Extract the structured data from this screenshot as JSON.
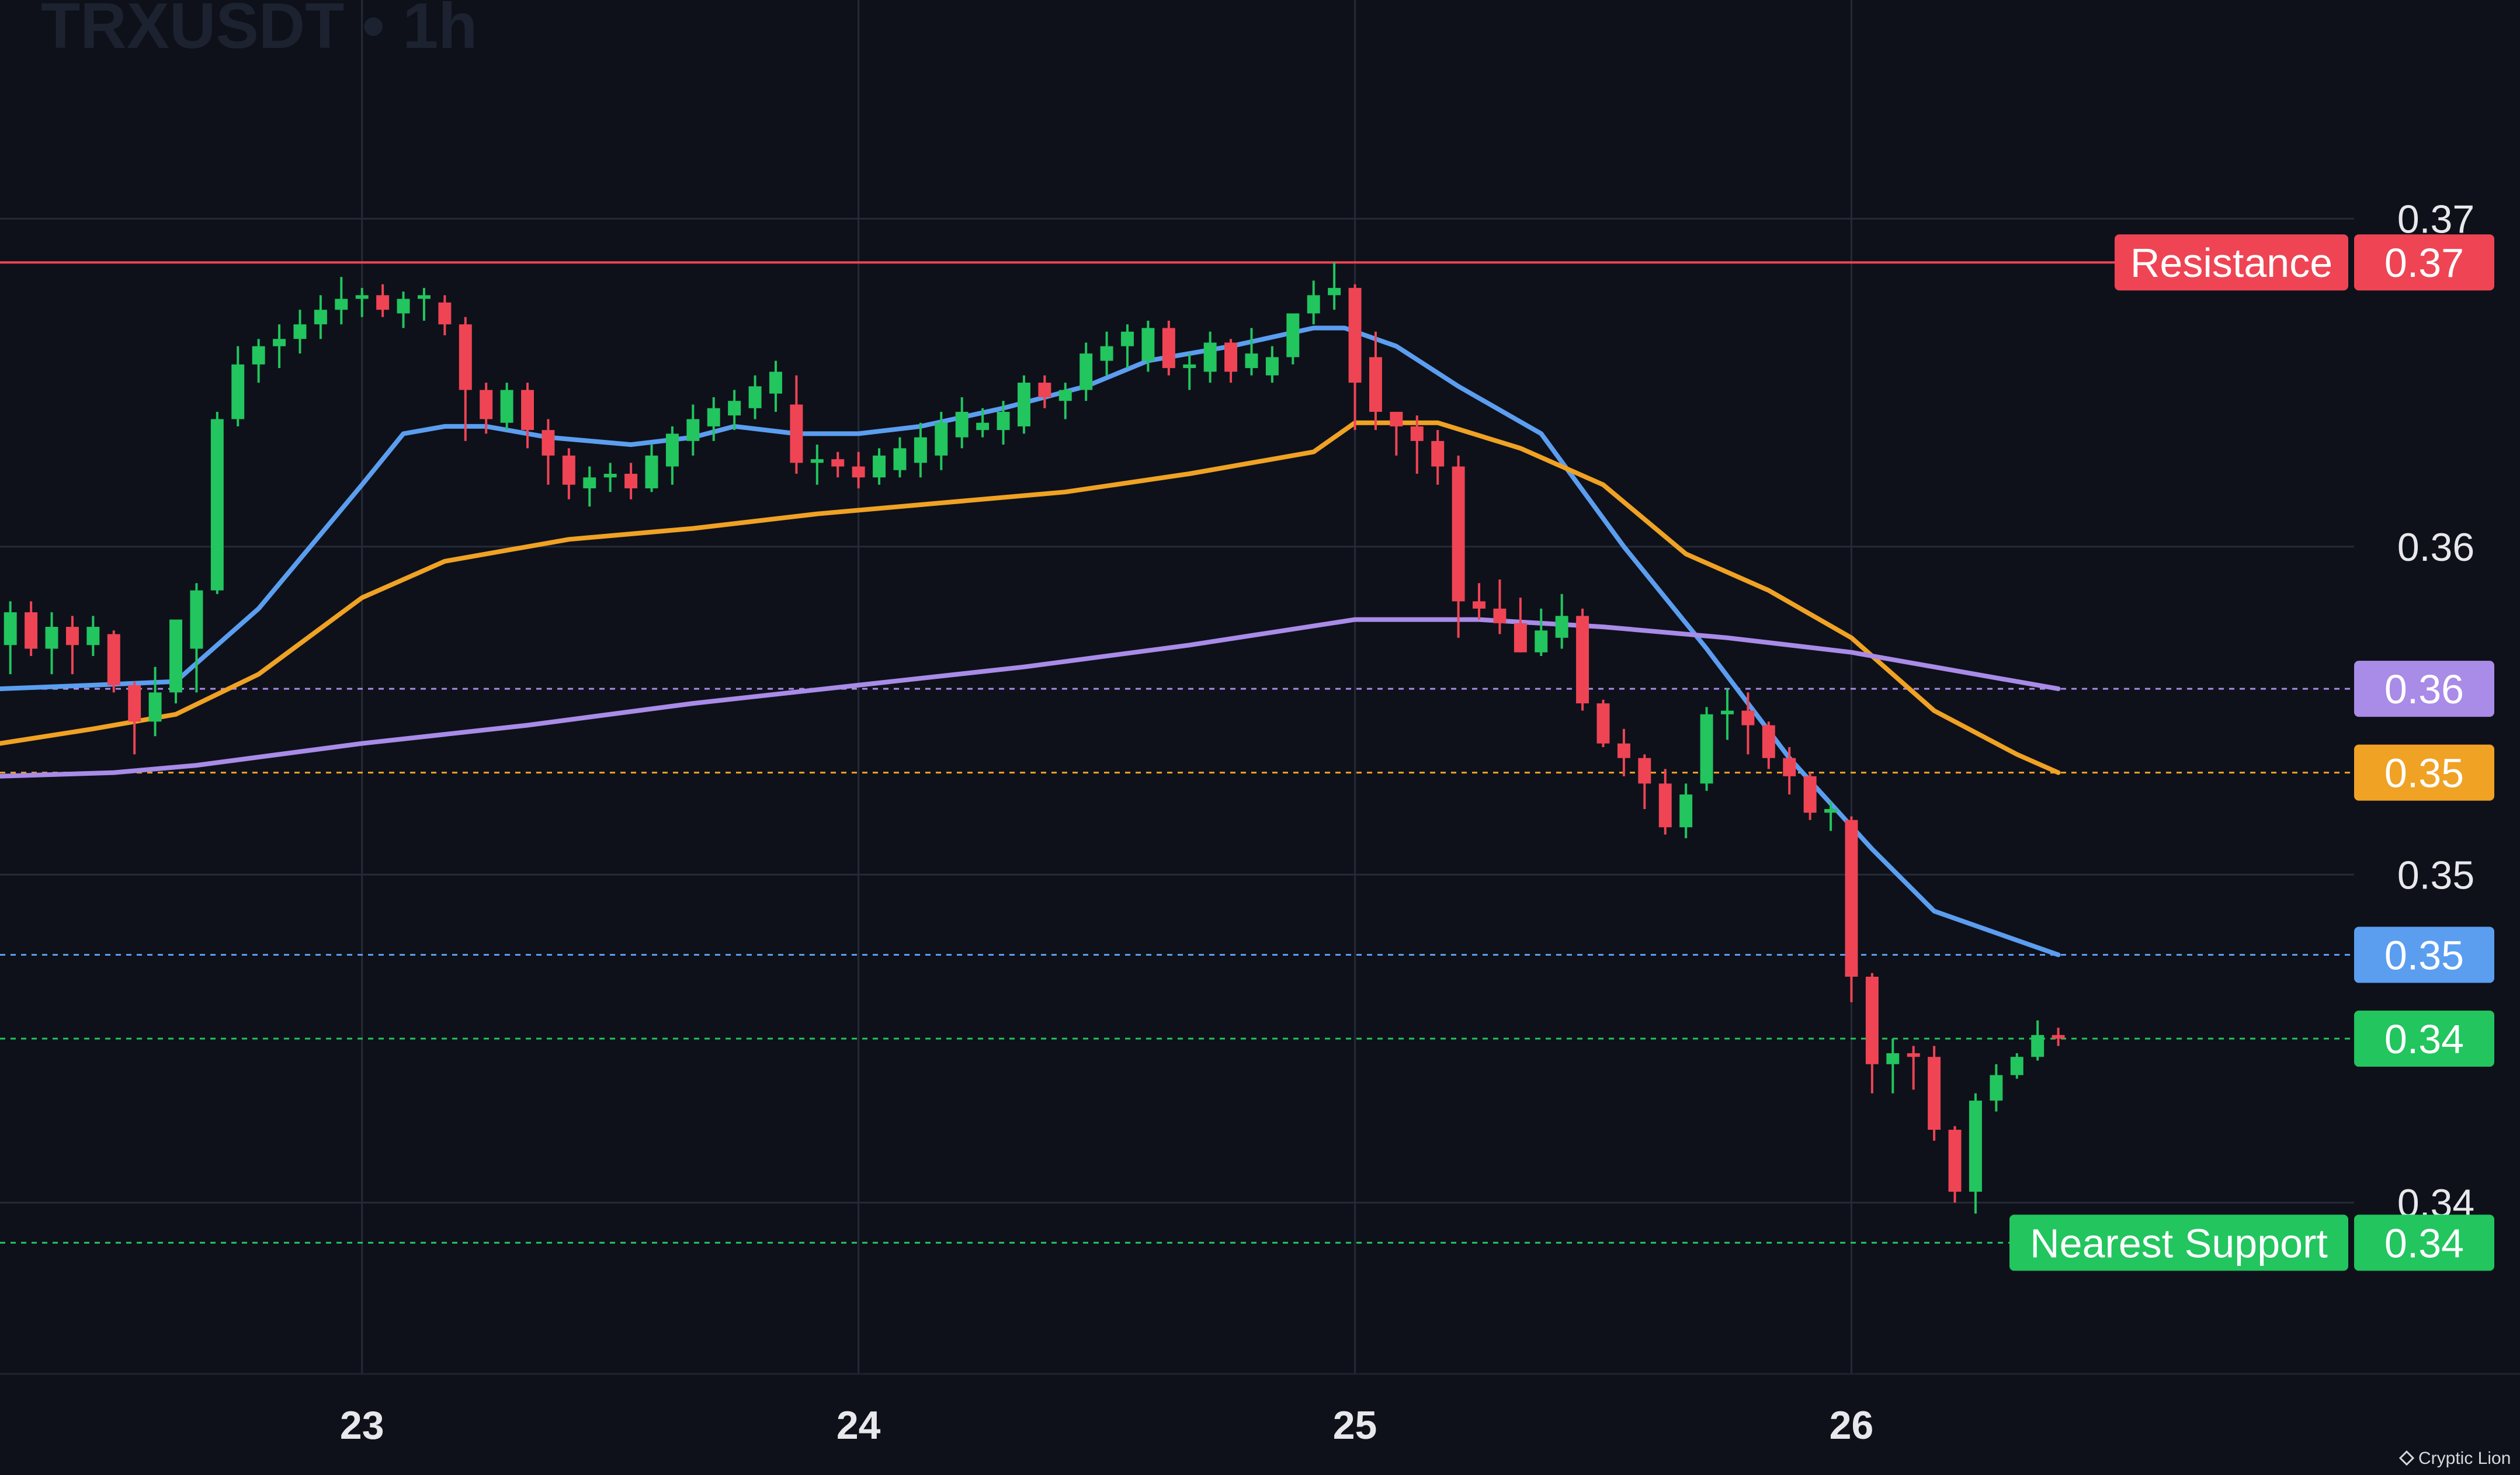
{
  "symbol_title": "TRXUSDT • 1h",
  "watermark": "Cryptic Lion",
  "colors": {
    "background": "#0e111a",
    "grid": "#252a36",
    "up": "#22c55e",
    "down": "#ef4454",
    "ema_fast": "#5b9ef0",
    "ema_mid": "#f0a224",
    "ema_slow": "#a98be8",
    "resistance": "#ef4454",
    "support": "#22c55e",
    "axis_text": "#e8e8ec"
  },
  "chart_data": {
    "type": "candlestick",
    "title": "TRXUSDT • 1h",
    "x_ticks": [
      "23",
      "24",
      "25",
      "26"
    ],
    "x_tick_positions": [
      0,
      24,
      48,
      72
    ],
    "x_range": [
      -17.5,
      96.3
    ],
    "y_ticks": [
      "0.37",
      "0.36",
      "0.35",
      "0.34"
    ],
    "y_tick_values": [
      0.3685,
      0.3595,
      0.3505,
      0.3415
    ],
    "ylim": [
      0.3368,
      0.3745
    ],
    "resistance": {
      "label": "Resistance",
      "price_label": "0.37",
      "value": 0.3673
    },
    "nearest_support": {
      "label": "Nearest Support",
      "price_label": "0.34",
      "value": 0.3404
    },
    "price_labels": [
      {
        "series": "ema_slow",
        "label": "0.36",
        "value": 0.3556
      },
      {
        "series": "ema_mid",
        "label": "0.35",
        "value": 0.3533
      },
      {
        "series": "ema_fast",
        "label": "0.35",
        "value": 0.3483
      },
      {
        "series": "last_price",
        "label": "0.34",
        "value": 0.346
      }
    ],
    "candles": [
      [
        -17.0,
        0.3568,
        0.358,
        0.356,
        0.3577
      ],
      [
        -16.0,
        0.3577,
        0.358,
        0.3565,
        0.3567
      ],
      [
        -15.0,
        0.3567,
        0.3577,
        0.356,
        0.3573
      ],
      [
        -14.0,
        0.3573,
        0.3576,
        0.356,
        0.3568
      ],
      [
        -13.0,
        0.3568,
        0.3576,
        0.3565,
        0.3573
      ],
      [
        -12.0,
        0.3571,
        0.3572,
        0.3555,
        0.3557
      ],
      [
        -11.0,
        0.3557,
        0.3558,
        0.3538,
        0.3547
      ],
      [
        -10.0,
        0.3547,
        0.3562,
        0.3543,
        0.3555
      ],
      [
        -9.0,
        0.3555,
        0.3573,
        0.3552,
        0.3575
      ],
      [
        -8.0,
        0.3567,
        0.3585,
        0.3555,
        0.3583
      ],
      [
        -7.0,
        0.3583,
        0.3632,
        0.3582,
        0.363
      ],
      [
        -6.0,
        0.363,
        0.365,
        0.3628,
        0.3645
      ],
      [
        -5.0,
        0.3645,
        0.3652,
        0.364,
        0.365
      ],
      [
        -4.0,
        0.365,
        0.3656,
        0.3644,
        0.3652
      ],
      [
        -3.0,
        0.3652,
        0.366,
        0.3648,
        0.3656
      ],
      [
        -2.0,
        0.3656,
        0.3664,
        0.3652,
        0.366
      ],
      [
        -1.0,
        0.366,
        0.3669,
        0.3656,
        0.3663
      ],
      [
        0.0,
        0.3663,
        0.3666,
        0.3658,
        0.3664
      ],
      [
        1.0,
        0.3664,
        0.3667,
        0.3658,
        0.366
      ],
      [
        2.0,
        0.3659,
        0.3665,
        0.3655,
        0.3663
      ],
      [
        3.0,
        0.3663,
        0.3666,
        0.3657,
        0.3664
      ],
      [
        4.0,
        0.3662,
        0.3664,
        0.3653,
        0.3656
      ],
      [
        5.0,
        0.3656,
        0.3658,
        0.3624,
        0.3638
      ],
      [
        6.0,
        0.3638,
        0.364,
        0.3626,
        0.363
      ],
      [
        7.0,
        0.3629,
        0.364,
        0.3627,
        0.3638
      ],
      [
        8.0,
        0.3638,
        0.364,
        0.3622,
        0.3627
      ],
      [
        9.0,
        0.3627,
        0.363,
        0.3612,
        0.362
      ],
      [
        10.0,
        0.362,
        0.3622,
        0.3608,
        0.3612
      ],
      [
        11.0,
        0.3611,
        0.3617,
        0.3606,
        0.3614
      ],
      [
        12.0,
        0.3614,
        0.3618,
        0.361,
        0.3615
      ],
      [
        13.0,
        0.3615,
        0.3618,
        0.3608,
        0.3611
      ],
      [
        14.0,
        0.3611,
        0.3623,
        0.361,
        0.362
      ],
      [
        15.0,
        0.3617,
        0.3628,
        0.3612,
        0.3626
      ],
      [
        16.0,
        0.3624,
        0.3634,
        0.362,
        0.363
      ],
      [
        17.0,
        0.3628,
        0.3636,
        0.3624,
        0.3633
      ],
      [
        18.0,
        0.3631,
        0.3638,
        0.3627,
        0.3635
      ],
      [
        19.0,
        0.3633,
        0.3642,
        0.363,
        0.3639
      ],
      [
        20.0,
        0.3637,
        0.3646,
        0.3632,
        0.3643
      ],
      [
        21.0,
        0.3634,
        0.3642,
        0.3615,
        0.3618
      ],
      [
        22.0,
        0.3618,
        0.3623,
        0.3612,
        0.3619
      ],
      [
        23.0,
        0.3619,
        0.3621,
        0.3614,
        0.3617
      ],
      [
        24.0,
        0.3617,
        0.3621,
        0.3611,
        0.3614
      ],
      [
        25.0,
        0.3614,
        0.3622,
        0.3612,
        0.362
      ],
      [
        26.0,
        0.3616,
        0.3625,
        0.3614,
        0.3622
      ],
      [
        27.0,
        0.3618,
        0.3629,
        0.3614,
        0.3625
      ],
      [
        28.0,
        0.362,
        0.3632,
        0.3616,
        0.3629
      ],
      [
        29.0,
        0.3625,
        0.3636,
        0.3622,
        0.3632
      ],
      [
        30.0,
        0.3627,
        0.3633,
        0.3625,
        0.3629
      ],
      [
        31.0,
        0.3627,
        0.3635,
        0.3623,
        0.3632
      ],
      [
        32.0,
        0.3628,
        0.3642,
        0.3626,
        0.364
      ],
      [
        33.0,
        0.364,
        0.3642,
        0.3633,
        0.3636
      ],
      [
        34.0,
        0.3635,
        0.364,
        0.363,
        0.3638
      ],
      [
        35.0,
        0.3638,
        0.3651,
        0.3635,
        0.3648
      ],
      [
        36.0,
        0.3646,
        0.3654,
        0.3642,
        0.365
      ],
      [
        37.0,
        0.365,
        0.3656,
        0.3644,
        0.3654
      ],
      [
        38.0,
        0.3646,
        0.3657,
        0.3643,
        0.3655
      ],
      [
        39.0,
        0.3655,
        0.3657,
        0.3642,
        0.3644
      ],
      [
        40.0,
        0.3644,
        0.3648,
        0.3638,
        0.3645
      ],
      [
        41.0,
        0.3643,
        0.3654,
        0.364,
        0.3651
      ],
      [
        42.0,
        0.3651,
        0.3652,
        0.364,
        0.3643
      ],
      [
        43.0,
        0.3644,
        0.3655,
        0.3642,
        0.3648
      ],
      [
        44.0,
        0.3642,
        0.365,
        0.364,
        0.3647
      ],
      [
        45.0,
        0.3647,
        0.3659,
        0.3645,
        0.3659
      ],
      [
        46.0,
        0.3659,
        0.3668,
        0.3656,
        0.3664
      ],
      [
        47.0,
        0.3664,
        0.3673,
        0.366,
        0.3666
      ],
      [
        48.0,
        0.3666,
        0.3667,
        0.3627,
        0.364
      ],
      [
        49.0,
        0.3647,
        0.3654,
        0.3627,
        0.3632
      ],
      [
        50.0,
        0.3632,
        0.3631,
        0.362,
        0.3628
      ],
      [
        51.0,
        0.3628,
        0.3631,
        0.3615,
        0.3624
      ],
      [
        52.0,
        0.3624,
        0.3627,
        0.3612,
        0.3617
      ],
      [
        53.0,
        0.3617,
        0.362,
        0.357,
        0.358
      ],
      [
        54.0,
        0.358,
        0.3585,
        0.3575,
        0.3578
      ],
      [
        55.0,
        0.3578,
        0.3586,
        0.3571,
        0.3574
      ],
      [
        56.0,
        0.3574,
        0.3581,
        0.3566,
        0.3566
      ],
      [
        57.0,
        0.3566,
        0.3578,
        0.3565,
        0.3572
      ],
      [
        58.0,
        0.357,
        0.3582,
        0.3567,
        0.3576
      ],
      [
        59.0,
        0.3576,
        0.3578,
        0.355,
        0.3552
      ],
      [
        60.0,
        0.3552,
        0.3553,
        0.354,
        0.3541
      ],
      [
        61.0,
        0.3541,
        0.3545,
        0.3532,
        0.3537
      ],
      [
        62.0,
        0.3537,
        0.3538,
        0.3523,
        0.353
      ],
      [
        63.0,
        0.353,
        0.3534,
        0.3516,
        0.3518
      ],
      [
        64.0,
        0.3518,
        0.353,
        0.3515,
        0.3527
      ],
      [
        65.0,
        0.353,
        0.3551,
        0.3528,
        0.3549
      ],
      [
        66.0,
        0.3549,
        0.3556,
        0.3542,
        0.355
      ],
      [
        67.0,
        0.355,
        0.3555,
        0.3538,
        0.3546
      ],
      [
        68.0,
        0.3546,
        0.3547,
        0.3534,
        0.3537
      ],
      [
        69.0,
        0.3537,
        0.354,
        0.3527,
        0.3532
      ],
      [
        70.0,
        0.3532,
        0.3533,
        0.352,
        0.3522
      ],
      [
        71.0,
        0.3522,
        0.3525,
        0.3517,
        0.3523
      ],
      [
        72.0,
        0.352,
        0.3521,
        0.347,
        0.3477
      ],
      [
        73.0,
        0.3477,
        0.3478,
        0.3445,
        0.3453
      ],
      [
        74.0,
        0.3453,
        0.346,
        0.3445,
        0.3456
      ],
      [
        75.0,
        0.3456,
        0.3458,
        0.3446,
        0.3455
      ],
      [
        76.0,
        0.3455,
        0.3458,
        0.3432,
        0.3435
      ],
      [
        77.0,
        0.3435,
        0.3436,
        0.3415,
        0.3418
      ],
      [
        78.0,
        0.3418,
        0.3445,
        0.3412,
        0.3443
      ],
      [
        79.0,
        0.3443,
        0.3453,
        0.344,
        0.345
      ],
      [
        80.0,
        0.345,
        0.3456,
        0.3449,
        0.3455
      ],
      [
        81.0,
        0.3455,
        0.3465,
        0.3454,
        0.3461
      ],
      [
        82.0,
        0.3461,
        0.3463,
        0.3458,
        0.346
      ]
    ],
    "series": [
      {
        "key": "ema_fast",
        "x": [
          -17.5,
          -13,
          -9,
          -5,
          0,
          2,
          4,
          6,
          9,
          13,
          16,
          18,
          21,
          24,
          27,
          31,
          35,
          38,
          42,
          46,
          47.5,
          50,
          53,
          57,
          61,
          65,
          69,
          73,
          76,
          80,
          82
        ],
        "y": [
          0.3556,
          0.3557,
          0.3558,
          0.3578,
          0.3612,
          0.3626,
          0.3628,
          0.3628,
          0.3625,
          0.3623,
          0.3625,
          0.3628,
          0.3626,
          0.3626,
          0.3628,
          0.3633,
          0.3639,
          0.3646,
          0.365,
          0.3655,
          0.3655,
          0.365,
          0.3639,
          0.3626,
          0.3595,
          0.3567,
          0.3537,
          0.3512,
          0.3495,
          0.3487,
          0.3483
        ]
      },
      {
        "key": "ema_mid",
        "x": [
          -17.5,
          -13,
          -9,
          -5,
          0,
          4,
          10,
          16,
          22,
          28,
          34,
          40,
          46,
          48,
          52,
          56,
          60,
          64,
          68,
          72,
          76,
          80,
          82
        ],
        "y": [
          0.3541,
          0.3545,
          0.3549,
          0.356,
          0.3581,
          0.3591,
          0.3597,
          0.36,
          0.3604,
          0.3607,
          0.361,
          0.3615,
          0.3621,
          0.3629,
          0.3629,
          0.3622,
          0.3612,
          0.3593,
          0.3583,
          0.357,
          0.355,
          0.3538,
          0.3533
        ]
      },
      {
        "key": "ema_slow",
        "x": [
          -17.5,
          -12,
          -8,
          0,
          8,
          16,
          24,
          32,
          40,
          48,
          54,
          60,
          66,
          72,
          78,
          82
        ],
        "y": [
          0.3532,
          0.3533,
          0.3535,
          0.3541,
          0.3546,
          0.3552,
          0.3557,
          0.3562,
          0.3568,
          0.3575,
          0.3575,
          0.3573,
          0.357,
          0.3566,
          0.356,
          0.3556
        ]
      }
    ]
  }
}
